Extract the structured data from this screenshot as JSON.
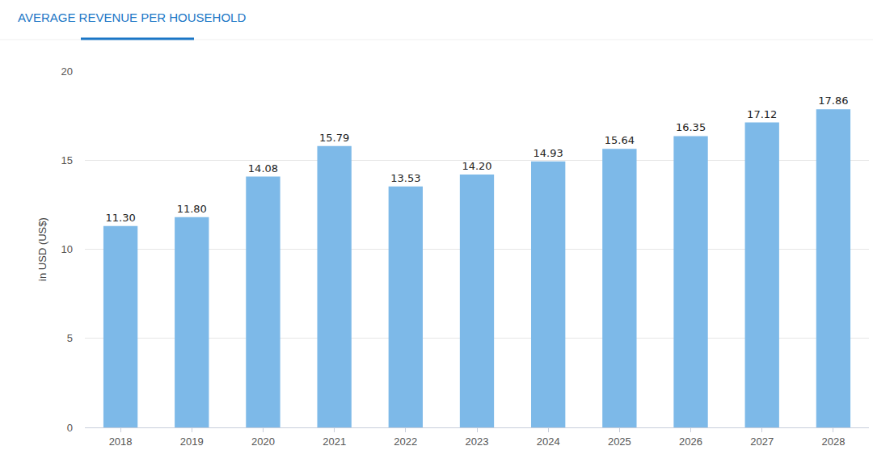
{
  "chart_data": {
    "type": "bar",
    "title": "AVERAGE REVENUE PER HOUSEHOLD",
    "y_label": "in USD (US$)",
    "categories": [
      "2018",
      "2019",
      "2020",
      "2021",
      "2022",
      "2023",
      "2024",
      "2025",
      "2026",
      "2027",
      "2028"
    ],
    "values": [
      11.3,
      11.8,
      14.08,
      15.79,
      13.53,
      14.2,
      14.93,
      15.64,
      16.35,
      17.12,
      17.86
    ],
    "value_labels": [
      "11.30",
      "11.80",
      "14.08",
      "15.79",
      "13.53",
      "14.20",
      "14.93",
      "15.64",
      "16.35",
      "17.12",
      "17.86"
    ],
    "color": "#7db9e8",
    "ylim": [
      0,
      20
    ],
    "yticks": [
      0,
      5,
      10,
      15,
      20
    ],
    "grid": true,
    "data_labels": true
  }
}
